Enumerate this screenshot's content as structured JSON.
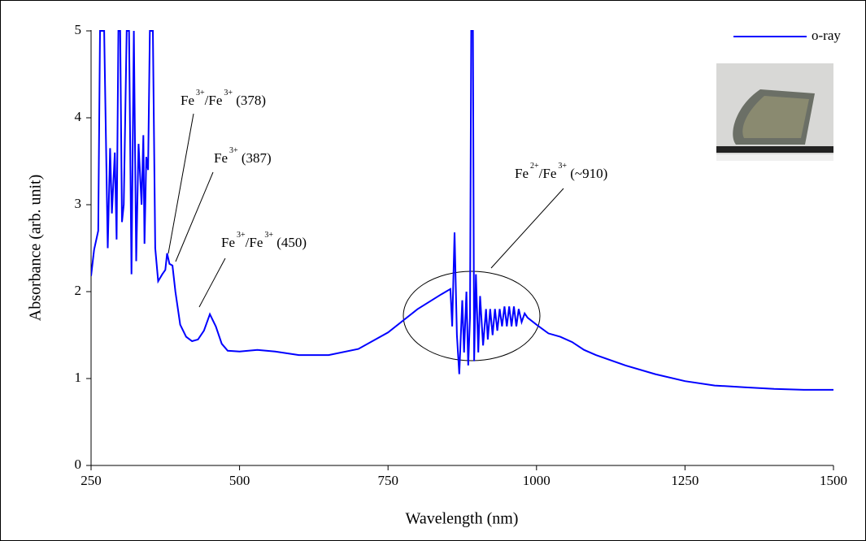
{
  "chart_data": {
    "type": "line",
    "xlabel": "Wavelength (nm)",
    "ylabel": "Absorbance (arb. unit)",
    "xlim": [
      250,
      1500
    ],
    "ylim": [
      0,
      5
    ],
    "xticks": [
      250,
      500,
      750,
      1000,
      1250,
      1500
    ],
    "yticks": [
      0,
      1,
      2,
      3,
      4,
      5
    ],
    "x": [
      250,
      255,
      262,
      265,
      268,
      272,
      278,
      282,
      285,
      290,
      293,
      296,
      299,
      302,
      305,
      310,
      314,
      318,
      322,
      326,
      330,
      335,
      338,
      340,
      343,
      346,
      349,
      354,
      358,
      363,
      370,
      375,
      378,
      382,
      387,
      392,
      400,
      410,
      420,
      430,
      440,
      450,
      460,
      470,
      480,
      500,
      530,
      560,
      600,
      650,
      700,
      750,
      800,
      840,
      855,
      858,
      862,
      866,
      870,
      875,
      878,
      882,
      885,
      888,
      890,
      893,
      895,
      898,
      902,
      905,
      910,
      915,
      918,
      922,
      926,
      930,
      934,
      938,
      942,
      946,
      950,
      954,
      958,
      962,
      966,
      970,
      975,
      980,
      985,
      1000,
      1020,
      1040,
      1060,
      1080,
      1100,
      1150,
      1200,
      1250,
      1300,
      1350,
      1400,
      1450,
      1500
    ],
    "series": [
      {
        "name": "o-ray",
        "color": "#0000ff",
        "values": [
          2.18,
          2.48,
          2.7,
          5,
          5,
          5,
          2.5,
          3.65,
          2.9,
          3.6,
          2.6,
          5,
          5,
          2.8,
          3.0,
          5,
          5,
          2.2,
          5,
          2.35,
          3.7,
          3.0,
          3.8,
          2.55,
          3.55,
          3.4,
          5,
          5,
          2.5,
          2.12,
          2.2,
          2.25,
          2.44,
          2.32,
          2.3,
          2.0,
          1.62,
          1.48,
          1.43,
          1.45,
          1.55,
          1.74,
          1.6,
          1.4,
          1.32,
          1.31,
          1.33,
          1.31,
          1.27,
          1.27,
          1.34,
          1.53,
          1.8,
          1.97,
          2.03,
          1.6,
          2.68,
          1.5,
          1.05,
          1.9,
          1.3,
          2.0,
          1.15,
          1.7,
          5,
          5,
          1.2,
          2.2,
          1.3,
          1.95,
          1.38,
          1.8,
          1.45,
          1.8,
          1.5,
          1.8,
          1.55,
          1.8,
          1.6,
          1.83,
          1.6,
          1.83,
          1.6,
          1.83,
          1.6,
          1.8,
          1.65,
          1.75,
          1.7,
          1.62,
          1.52,
          1.48,
          1.42,
          1.33,
          1.27,
          1.15,
          1.05,
          0.97,
          0.92,
          0.9,
          0.88,
          0.87,
          0.87
        ]
      }
    ],
    "annotations": [
      {
        "base": [
          "Fe",
          "/Fe",
          " (378)"
        ],
        "sup": [
          "3+",
          "3+"
        ]
      },
      {
        "base": [
          "Fe",
          " (387)"
        ],
        "sup": [
          "3+"
        ]
      },
      {
        "base": [
          "Fe",
          "/Fe",
          " (450)"
        ],
        "sup": [
          "3+",
          "3+"
        ]
      },
      {
        "base": [
          "Fe",
          "/Fe",
          " (~910)"
        ],
        "sup": [
          "2+",
          "3+"
        ]
      }
    ]
  }
}
